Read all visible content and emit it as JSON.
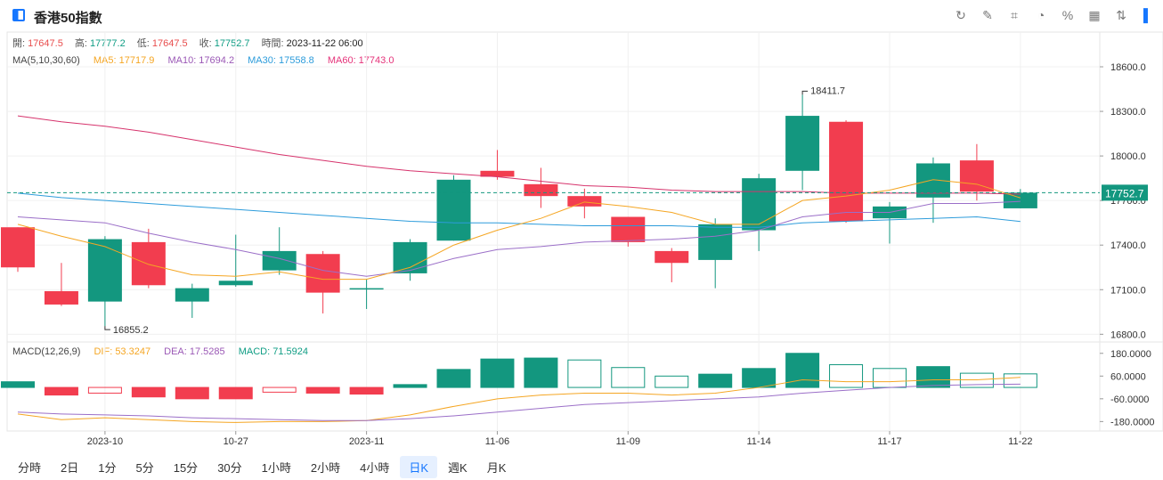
{
  "header": {
    "title": "香港50指數",
    "tools": [
      {
        "icon": "refresh-icon",
        "glyph": "↻"
      },
      {
        "icon": "draw-icon",
        "glyph": "✎"
      },
      {
        "icon": "indicator-icon",
        "glyph": "⌗"
      },
      {
        "icon": "pie-icon",
        "glyph": "◔"
      },
      {
        "icon": "percent-icon",
        "glyph": "%"
      },
      {
        "icon": "grid-icon",
        "glyph": "▦"
      },
      {
        "icon": "sort-icon",
        "glyph": "⇅"
      },
      {
        "icon": "sidebar-toggle-icon",
        "glyph": "▌"
      }
    ]
  },
  "ohlc": {
    "open_label": "開:",
    "open": "17647.5",
    "high_label": "高:",
    "high": "17777.2",
    "low_label": "低:",
    "low": "17647.5",
    "close_label": "收:",
    "close": "17752.7",
    "time_label": "時間:",
    "time": "2023-11-22 06:00"
  },
  "ma": {
    "label": "MA(5,10,30,60)",
    "ma5": "MA5: 17717.9",
    "ma10": "MA10: 17694.2",
    "ma30": "MA30: 17558.8",
    "ma60": "MA60: 17743.0"
  },
  "macd": {
    "label": "MACD(12,26,9)",
    "dif": "DIF: 53.3247",
    "dea": "DEA: 17.5285",
    "macd": "MACD: 71.5924"
  },
  "colors": {
    "up": "#13977f",
    "down": "#f23d4f",
    "ma5": "#f5a623",
    "ma10": "#9b6fc8",
    "ma30": "#2d9cdb",
    "ma60": "#d6336c"
  },
  "chart_data": {
    "type": "candlestick",
    "x_ticks": [
      "2023-10",
      "10-27",
      "2023-11",
      "11-06",
      "11-09",
      "11-14",
      "11-17",
      "11-22"
    ],
    "y_ticks": [
      "18600.0",
      "18300.0",
      "18000.0",
      "17700.0",
      "17400.0",
      "17100.0",
      "16800.0"
    ],
    "ylim": [
      16760,
      18690
    ],
    "last_price": "17752.7",
    "high_annotation": "18411.7",
    "low_annotation": "16855.2",
    "candles": [
      {
        "o": 17520,
        "h": 17520,
        "l": 17220,
        "c": 17250
      },
      {
        "o": 17090,
        "h": 17280,
        "l": 16990,
        "c": 17000
      },
      {
        "o": 17020,
        "h": 17460,
        "l": 16855.2,
        "c": 17440
      },
      {
        "o": 17420,
        "h": 17510,
        "l": 17110,
        "c": 17130
      },
      {
        "o": 17020,
        "h": 17140,
        "l": 16910,
        "c": 17110
      },
      {
        "o": 17130,
        "h": 17470,
        "l": 17120,
        "c": 17160
      },
      {
        "o": 17230,
        "h": 17520,
        "l": 17200,
        "c": 17360
      },
      {
        "o": 17340,
        "h": 17360,
        "l": 16940,
        "c": 17080
      },
      {
        "o": 17110,
        "h": 17170,
        "l": 16970,
        "c": 17110
      },
      {
        "o": 17210,
        "h": 17440,
        "l": 17160,
        "c": 17420
      },
      {
        "o": 17430,
        "h": 17870,
        "l": 17430,
        "c": 17840
      },
      {
        "o": 17900,
        "h": 18040,
        "l": 17840,
        "c": 17860
      },
      {
        "o": 17810,
        "h": 17920,
        "l": 17650,
        "c": 17730
      },
      {
        "o": 17730,
        "h": 17780,
        "l": 17580,
        "c": 17660
      },
      {
        "o": 17590,
        "h": 17590,
        "l": 17390,
        "c": 17420
      },
      {
        "o": 17360,
        "h": 17380,
        "l": 17150,
        "c": 17280
      },
      {
        "o": 17300,
        "h": 17580,
        "l": 17110,
        "c": 17540
      },
      {
        "o": 17500,
        "h": 17880,
        "l": 17360,
        "c": 17850
      },
      {
        "o": 17900,
        "h": 18411.7,
        "l": 17770,
        "c": 18270
      },
      {
        "o": 18230,
        "h": 18240,
        "l": 17550,
        "c": 17560
      },
      {
        "o": 17580,
        "h": 17690,
        "l": 17410,
        "c": 17660
      },
      {
        "o": 17720,
        "h": 17990,
        "l": 17550,
        "c": 17950
      },
      {
        "o": 17970,
        "h": 18080,
        "l": 17700,
        "c": 17760
      },
      {
        "o": 17647.5,
        "h": 17777.2,
        "l": 17647.5,
        "c": 17752.7
      }
    ],
    "ma5": [
      17540,
      17460,
      17390,
      17270,
      17200,
      17190,
      17220,
      17170,
      17170,
      17250,
      17400,
      17500,
      17580,
      17690,
      17660,
      17620,
      17540,
      17540,
      17700,
      17730,
      17770,
      17840,
      17810,
      17717.9
    ],
    "ma10": [
      17590,
      17570,
      17550,
      17480,
      17420,
      17370,
      17310,
      17230,
      17190,
      17230,
      17310,
      17370,
      17390,
      17420,
      17430,
      17440,
      17460,
      17500,
      17590,
      17620,
      17620,
      17680,
      17680,
      17694.2
    ],
    "ma30": [
      17750,
      17720,
      17700,
      17680,
      17660,
      17640,
      17620,
      17600,
      17580,
      17560,
      17550,
      17550,
      17540,
      17530,
      17530,
      17530,
      17520,
      17520,
      17550,
      17560,
      17570,
      17580,
      17590,
      17558.8
    ],
    "ma60": [
      18270,
      18230,
      18200,
      18160,
      18110,
      18060,
      18010,
      17970,
      17930,
      17900,
      17880,
      17860,
      17830,
      17800,
      17790,
      17770,
      17760,
      17760,
      17760,
      17750,
      17750,
      17750,
      17750,
      17743.0
    ],
    "macd_ticks": [
      "180.0000",
      "60.0000",
      "-60.0000",
      "-180.0000"
    ],
    "macd_ylim": [
      -230,
      240
    ],
    "macd_hist": [
      30,
      -40,
      -30,
      -50,
      -60,
      -60,
      -25,
      -30,
      -35,
      15,
      95,
      150,
      155,
      145,
      105,
      60,
      70,
      100,
      180,
      120,
      100,
      110,
      75,
      71.59
    ],
    "dif": [
      -140,
      -170,
      -160,
      -170,
      -180,
      -185,
      -180,
      -180,
      -175,
      -145,
      -100,
      -60,
      -40,
      -30,
      -30,
      -40,
      -30,
      0,
      40,
      30,
      30,
      40,
      40,
      53.32
    ],
    "dea": [
      -130,
      -140,
      -145,
      -150,
      -160,
      -165,
      -170,
      -175,
      -175,
      -165,
      -150,
      -130,
      -110,
      -90,
      -80,
      -70,
      -60,
      -50,
      -30,
      -15,
      0,
      10,
      15,
      17.53
    ]
  },
  "timeframe_tabs": [
    "分時",
    "2日",
    "1分",
    "5分",
    "15分",
    "30分",
    "1小時",
    "2小時",
    "4小時",
    "日K",
    "週K",
    "月K"
  ],
  "active_tab": "日K"
}
